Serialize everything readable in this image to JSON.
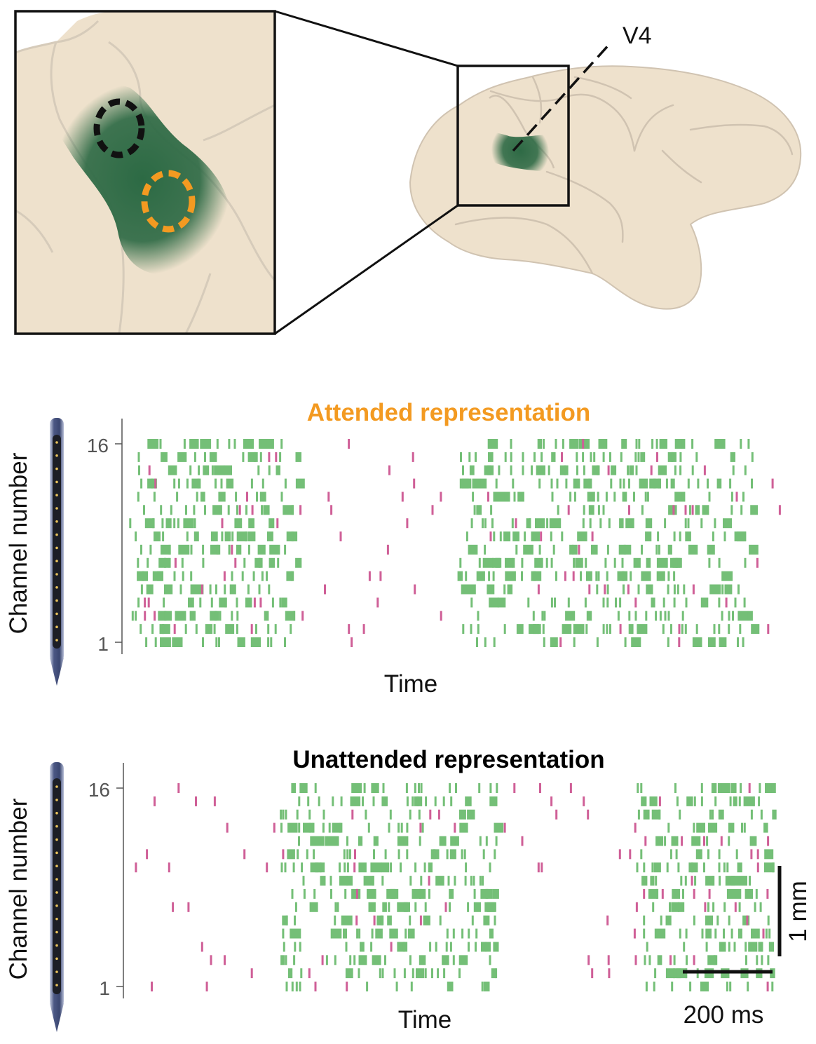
{
  "figure": {
    "area_label": "V4",
    "raster_panels": [
      {
        "id": "attended",
        "title": "Attended representation",
        "title_color": "#F39A21",
        "ylabel": "Channel number",
        "xlabel": "Time",
        "tick_top": "16",
        "tick_bottom": "1",
        "seed": 7,
        "channels": 16,
        "bursts": [
          {
            "from": 0.0,
            "to": 0.33,
            "channels": [
              1,
              16
            ],
            "density": 0.55
          },
          {
            "from": 0.64,
            "to": 1.22,
            "channels": [
              1,
              16
            ],
            "density": 0.55
          }
        ]
      },
      {
        "id": "unattended",
        "title": "Unattended representation",
        "title_color": "#000000",
        "ylabel": "Channel number",
        "xlabel": "Time",
        "tick_top": "16",
        "tick_bottom": "1",
        "seed": 23,
        "channels": 16,
        "bursts": [
          {
            "from": 0.3,
            "to": 0.73,
            "channels": [
              1,
              16
            ],
            "density": 0.55
          },
          {
            "from": 1.0,
            "to": 1.27,
            "channels": [
              1,
              16
            ],
            "density": 0.6
          }
        ]
      }
    ],
    "spike_colors": {
      "burst": "#74BF77",
      "background": "#CF5F97"
    },
    "scale_bars": {
      "vertical": "1 mm",
      "horizontal": "200 ms"
    },
    "colors": {
      "brain_fill": "#EEE1CC",
      "brain_line": "#D0C3B1",
      "v4_green": "#2E6A45",
      "attended_ring": "#F39A21",
      "unattended_ring": "#111111",
      "probe_body": "#4A5680",
      "probe_contacts": "#E8C25B"
    }
  }
}
